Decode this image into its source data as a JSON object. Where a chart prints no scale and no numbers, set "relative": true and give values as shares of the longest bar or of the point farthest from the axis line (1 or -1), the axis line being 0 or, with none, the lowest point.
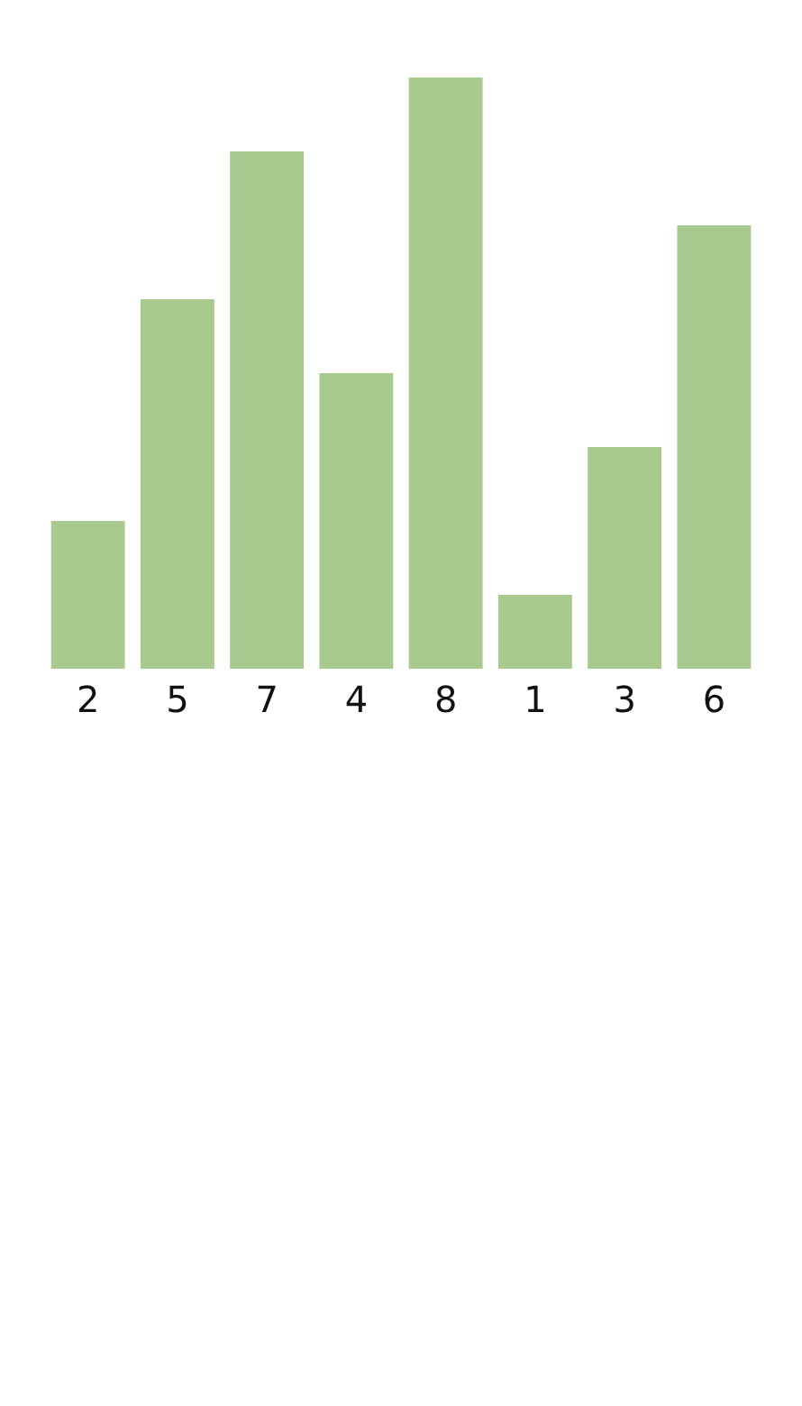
{
  "chart_data": {
    "type": "bar",
    "relative": true,
    "categories": [
      "2",
      "5",
      "7",
      "4",
      "8",
      "1",
      "3",
      "6"
    ],
    "values": [
      0.25,
      0.625,
      0.875,
      0.5,
      1,
      0.125,
      0.375,
      0.75
    ],
    "color": "#a9ca8e"
  }
}
